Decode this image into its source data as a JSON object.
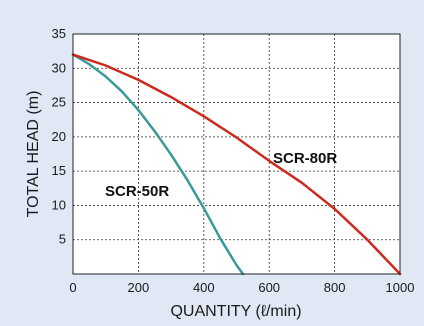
{
  "chart_data": {
    "type": "line",
    "xlabel": "QUANTITY (ℓ/min)",
    "ylabel": "TOTAL HEAD (m)",
    "xlim": [
      0,
      1000
    ],
    "ylim": [
      0,
      35
    ],
    "xticks": [
      0,
      200,
      400,
      600,
      800,
      1000
    ],
    "yticks": [
      5,
      10,
      15,
      20,
      25,
      30,
      35
    ],
    "grid": true,
    "series": [
      {
        "name": "SCR-50R",
        "color": "#3a9a9a",
        "x": [
          0,
          50,
          100,
          150,
          200,
          250,
          300,
          350,
          400,
          450,
          500,
          520
        ],
        "y": [
          32,
          30.6,
          28.8,
          26.6,
          23.9,
          20.8,
          17.4,
          13.7,
          9.6,
          5.2,
          1.3,
          0
        ]
      },
      {
        "name": "SCR-80R",
        "color": "#cc2a1e",
        "x": [
          0,
          100,
          200,
          300,
          400,
          500,
          600,
          700,
          800,
          900,
          1000
        ],
        "y": [
          32,
          30.4,
          28.3,
          25.8,
          23.0,
          19.9,
          16.5,
          13.3,
          9.5,
          5.0,
          0
        ]
      }
    ]
  }
}
